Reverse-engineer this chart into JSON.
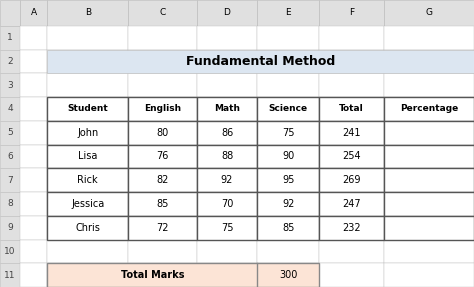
{
  "title": "Fundamental Method",
  "title_bg": "#dce6f1",
  "col_headers": [
    "Student",
    "English",
    "Math",
    "Science",
    "Total",
    "Percentage"
  ],
  "rows": [
    [
      "John",
      "80",
      "86",
      "75",
      "241",
      ""
    ],
    [
      "Lisa",
      "76",
      "88",
      "90",
      "254",
      ""
    ],
    [
      "Rick",
      "82",
      "92",
      "95",
      "269",
      ""
    ],
    [
      "Jessica",
      "85",
      "70",
      "92",
      "247",
      ""
    ],
    [
      "Chris",
      "72",
      "75",
      "85",
      "232",
      ""
    ]
  ],
  "col_labels": [
    "A",
    "B",
    "C",
    "D",
    "E",
    "F",
    "G"
  ],
  "row_labels": [
    "1",
    "2",
    "3",
    "4",
    "5",
    "6",
    "7",
    "8",
    "9",
    "10",
    "11"
  ],
  "total_marks_label": "Total Marks",
  "total_marks_value": "300",
  "total_marks_bg": "#fce4d6",
  "bg_color": "#f0f0f0",
  "grid_color": "#bfbfbf",
  "excel_header_bg": "#e0e0e0"
}
